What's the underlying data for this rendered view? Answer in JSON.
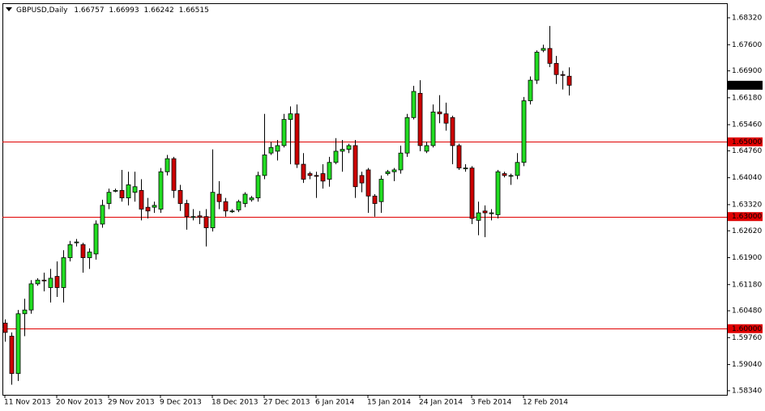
{
  "chart_data": {
    "type": "candlestick",
    "title": "GBPUSD,Daily",
    "categories": [
      "11 Nov 2013",
      null,
      null,
      null,
      null,
      null,
      null,
      null,
      "20 Nov 2013",
      null,
      null,
      null,
      null,
      null,
      null,
      null,
      "29 Nov 2013",
      null,
      null,
      null,
      null,
      null,
      null,
      null,
      "9 Dec 2013",
      null,
      null,
      null,
      null,
      null,
      null,
      null,
      "18 Dec 2013",
      null,
      null,
      null,
      null,
      null,
      null,
      null,
      "27 Dec 2013",
      null,
      null,
      null,
      null,
      null,
      null,
      null,
      "6 Jan 2014",
      null,
      null,
      null,
      null,
      null,
      null,
      null,
      "15 Jan 2014",
      null,
      null,
      null,
      null,
      null,
      null,
      null,
      "24 Jan 2014",
      null,
      null,
      null,
      null,
      null,
      null,
      null,
      "3 Feb 2014",
      null,
      null,
      null,
      null,
      null,
      null,
      null,
      "12 Feb 2014",
      null,
      null,
      null,
      null,
      null,
      null,
      null
    ],
    "open": [
      1.6015,
      1.598,
      1.588,
      1.604,
      1.605,
      1.612,
      1.613,
      1.611,
      1.614,
      1.611,
      1.619,
      1.623,
      1.6225,
      1.619,
      1.62,
      1.628,
      1.6335,
      1.637,
      1.637,
      1.635,
      1.6365,
      1.637,
      1.6325,
      1.6325,
      1.632,
      1.642,
      1.6455,
      1.637,
      1.6335,
      1.63,
      1.6302,
      1.63,
      1.627,
      1.636,
      1.634,
      1.6315,
      1.6318,
      1.6335,
      1.6345,
      1.635,
      1.641,
      1.647,
      1.6475,
      1.649,
      1.656,
      1.6575,
      1.644,
      1.6415,
      1.641,
      1.6415,
      1.64,
      1.6445,
      1.6475,
      1.648,
      1.649,
      1.641,
      1.6425,
      1.6355,
      1.634,
      1.6415,
      1.642,
      1.6425,
      1.647,
      1.6565,
      1.663,
      1.6475,
      1.649,
      1.658,
      1.6575,
      1.6565,
      1.649,
      1.643,
      1.643,
      1.629,
      1.6315,
      1.631,
      1.6305,
      1.6415,
      1.641,
      1.641,
      1.6445,
      1.661,
      1.6665,
      1.6745,
      1.675,
      1.671,
      1.668,
      1.66757
    ],
    "high": [
      1.6025,
      1.599,
      1.605,
      1.608,
      1.613,
      1.6135,
      1.615,
      1.616,
      1.618,
      1.621,
      1.6235,
      1.624,
      1.623,
      1.6215,
      1.629,
      1.6345,
      1.6375,
      1.6375,
      1.6425,
      1.642,
      1.642,
      1.64,
      1.635,
      1.634,
      1.643,
      1.6465,
      1.646,
      1.6385,
      1.6345,
      1.632,
      1.6315,
      1.632,
      1.648,
      1.6395,
      1.635,
      1.632,
      1.6345,
      1.6365,
      1.6355,
      1.642,
      1.6575,
      1.65,
      1.6505,
      1.6575,
      1.6595,
      1.66,
      1.647,
      1.642,
      1.642,
      1.644,
      1.646,
      1.651,
      1.6505,
      1.6495,
      1.6505,
      1.642,
      1.643,
      1.636,
      1.641,
      1.6425,
      1.643,
      1.649,
      1.6575,
      1.665,
      1.6665,
      1.65,
      1.66,
      1.6625,
      1.6605,
      1.657,
      1.6495,
      1.644,
      1.6435,
      1.634,
      1.633,
      1.632,
      1.6425,
      1.642,
      1.6415,
      1.647,
      1.662,
      1.6675,
      1.6745,
      1.676,
      1.681,
      1.673,
      1.669,
      1.66993
    ],
    "low": [
      1.5965,
      1.585,
      1.586,
      1.598,
      1.604,
      1.6115,
      1.61,
      1.607,
      1.6085,
      1.607,
      1.618,
      1.622,
      1.615,
      1.616,
      1.6185,
      1.627,
      1.632,
      1.6365,
      1.634,
      1.633,
      1.634,
      1.629,
      1.6295,
      1.631,
      1.631,
      1.641,
      1.635,
      1.6315,
      1.6265,
      1.629,
      1.628,
      1.622,
      1.626,
      1.632,
      1.63,
      1.631,
      1.6312,
      1.6325,
      1.634,
      1.634,
      1.64,
      1.6465,
      1.645,
      1.6485,
      1.644,
      1.643,
      1.639,
      1.64,
      1.635,
      1.6375,
      1.638,
      1.644,
      1.642,
      1.647,
      1.635,
      1.6365,
      1.631,
      1.63,
      1.631,
      1.641,
      1.6395,
      1.6415,
      1.646,
      1.656,
      1.6475,
      1.647,
      1.6485,
      1.655,
      1.653,
      1.644,
      1.6425,
      1.642,
      1.628,
      1.625,
      1.6245,
      1.629,
      1.6295,
      1.6405,
      1.6385,
      1.64,
      1.6435,
      1.66,
      1.6655,
      1.674,
      1.67,
      1.6655,
      1.664,
      1.66242
    ],
    "close": [
      1.599,
      1.588,
      1.604,
      1.605,
      1.612,
      1.613,
      1.6128,
      1.6135,
      1.611,
      1.619,
      1.6225,
      1.6232,
      1.619,
      1.6205,
      1.628,
      1.633,
      1.6365,
      1.637,
      1.635,
      1.6385,
      1.638,
      1.632,
      1.6315,
      1.633,
      1.642,
      1.6455,
      1.637,
      1.6335,
      1.63,
      1.63,
      1.6298,
      1.627,
      1.6365,
      1.634,
      1.6315,
      1.6315,
      1.634,
      1.636,
      1.635,
      1.641,
      1.6465,
      1.6485,
      1.649,
      1.656,
      1.6575,
      1.644,
      1.64,
      1.641,
      1.6408,
      1.6395,
      1.6445,
      1.6475,
      1.648,
      1.649,
      1.638,
      1.639,
      1.6355,
      1.6335,
      1.64,
      1.642,
      1.6425,
      1.647,
      1.6565,
      1.6635,
      1.649,
      1.649,
      1.658,
      1.6575,
      1.655,
      1.649,
      1.643,
      1.643,
      1.6295,
      1.631,
      1.631,
      1.631,
      1.642,
      1.641,
      1.641,
      1.6445,
      1.661,
      1.6665,
      1.674,
      1.675,
      1.671,
      1.668,
      1.6678,
      1.66515
    ],
    "ylim": [
      1.5823,
      1.6871
    ],
    "yticks": [
      {
        "value": 1.6832,
        "label": "1.68320"
      },
      {
        "value": 1.676,
        "label": "1.67600"
      },
      {
        "value": 1.669,
        "label": "1.66900"
      },
      {
        "value": 1.6618,
        "label": "1.66180"
      },
      {
        "value": 1.6546,
        "label": "1.65460"
      },
      {
        "value": 1.6476,
        "label": "1.64760"
      },
      {
        "value": 1.6404,
        "label": "1.64040"
      },
      {
        "value": 1.6332,
        "label": "1.63320"
      },
      {
        "value": 1.6262,
        "label": "1.62620"
      },
      {
        "value": 1.619,
        "label": "1.61900"
      },
      {
        "value": 1.6118,
        "label": "1.61180"
      },
      {
        "value": 1.6048,
        "label": "1.60480"
      },
      {
        "value": 1.5976,
        "label": "1.59760"
      },
      {
        "value": 1.5904,
        "label": "1.59040"
      },
      {
        "value": 1.5834,
        "label": "1.58340"
      }
    ],
    "hlines": [
      {
        "value": 1.65,
        "label": "1.65000"
      },
      {
        "value": 1.63,
        "label": "1.63000"
      },
      {
        "value": 1.6,
        "label": "1.60000"
      }
    ],
    "hline_color": "#e00000",
    "up_color": "#22dd22",
    "down_color": "#cc0000",
    "wick_color": "#000000"
  }
}
